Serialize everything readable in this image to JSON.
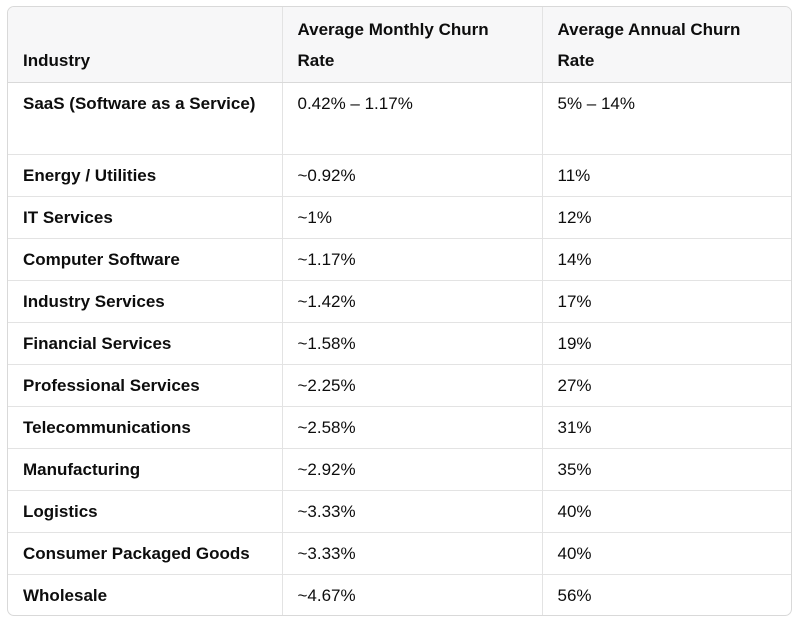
{
  "table": {
    "headers": {
      "industry": "Industry",
      "monthly": "Average Monthly Churn Rate",
      "annual": "Average Annual Churn Rate"
    },
    "rows": [
      {
        "industry": "SaaS (Software as a Service)",
        "monthly": "0.42% – 1.17%",
        "annual": "5% – 14%"
      },
      {
        "industry": "Energy / Utilities",
        "monthly": "~0.92%",
        "annual": "11%"
      },
      {
        "industry": "IT Services",
        "monthly": "~1%",
        "annual": "12%"
      },
      {
        "industry": "Computer Software",
        "monthly": "~1.17%",
        "annual": "14%"
      },
      {
        "industry": "Industry Services",
        "monthly": "~1.42%",
        "annual": "17%"
      },
      {
        "industry": "Financial Services",
        "monthly": "~1.58%",
        "annual": "19%"
      },
      {
        "industry": "Professional Services",
        "monthly": "~2.25%",
        "annual": "27%"
      },
      {
        "industry": "Telecommunications",
        "monthly": "~2.58%",
        "annual": "31%"
      },
      {
        "industry": "Manufacturing",
        "monthly": "~2.92%",
        "annual": "35%"
      },
      {
        "industry": "Logistics",
        "monthly": "~3.33%",
        "annual": "40%"
      },
      {
        "industry": "Consumer Packaged Goods",
        "monthly": "~3.33%",
        "annual": "40%"
      },
      {
        "industry": "Wholesale",
        "monthly": "~4.67%",
        "annual": "56%"
      }
    ]
  }
}
